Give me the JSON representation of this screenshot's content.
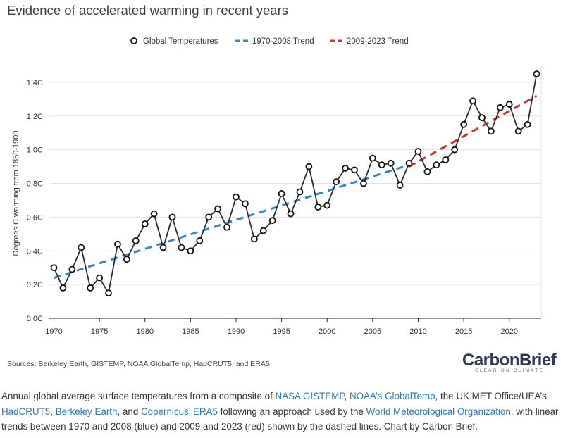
{
  "title": "Evidence of accelerated warming in recent years",
  "legend": [
    "Global Temperatures",
    "1970-2008 Trend",
    "2009-2023 Trend"
  ],
  "sources": "Sources: Berkeley Earth, GISTEMP, NOAA GlobalTemp, HadCRUT5, and ERA5",
  "logo": {
    "main": "CarbonBrief",
    "sub": "CLEAR ON CLIMATE"
  },
  "caption": {
    "t1": "Annual global average surface temperatures from a composite of ",
    "l1": "NASA GISTEMP",
    "t2": ", ",
    "l2": "NOAA’s GlobalTemp",
    "t3": ", the UK MET Office/UEA’s ",
    "l3": "HadCRUT5",
    "t4": ", ",
    "l4": "Berkeley Earth",
    "t5": ", and ",
    "l5": "Copernicus’ ERA5",
    "t6": " following an approach used by the ",
    "l6": "World Meteorological Organization",
    "t7": ", with linear trends between 1970 and 2008 (blue) and 2009 and 2023 (red) shown by the dashed lines. Chart by Carbon Brief."
  },
  "colors": {
    "series": "#2b2b2b",
    "trend1": "#3a86b6",
    "trend2": "#c0392b",
    "grid": "#e3e3e3"
  },
  "chart_data": {
    "type": "line",
    "title": "Evidence of accelerated warming in recent years",
    "xlabel": "",
    "ylabel": "Degrees C warming from 1850-1900",
    "xlim": [
      1969.5,
      2023.5
    ],
    "ylim": [
      0,
      1.5
    ],
    "xticks": [
      1970,
      1975,
      1980,
      1985,
      1990,
      1995,
      2000,
      2005,
      2010,
      2015,
      2020
    ],
    "yticks": [
      0,
      0.2,
      0.4,
      0.6,
      0.8,
      1.0,
      1.2,
      1.4
    ],
    "ytick_labels": [
      "0.0C",
      "0.2C",
      "0.4C",
      "0.6C",
      "0.8C",
      "1.0C",
      "1.2C",
      "1.4C"
    ],
    "grid": true,
    "legend_position": "top",
    "series": [
      {
        "name": "Global Temperatures",
        "x": [
          1970,
          1971,
          1972,
          1973,
          1974,
          1975,
          1976,
          1977,
          1978,
          1979,
          1980,
          1981,
          1982,
          1983,
          1984,
          1985,
          1986,
          1987,
          1988,
          1989,
          1990,
          1991,
          1992,
          1993,
          1994,
          1995,
          1996,
          1997,
          1998,
          1999,
          2000,
          2001,
          2002,
          2003,
          2004,
          2005,
          2006,
          2007,
          2008,
          2009,
          2010,
          2011,
          2012,
          2013,
          2014,
          2015,
          2016,
          2017,
          2018,
          2019,
          2020,
          2021,
          2022,
          2023
        ],
        "values": [
          0.3,
          0.18,
          0.29,
          0.42,
          0.18,
          0.24,
          0.15,
          0.44,
          0.35,
          0.46,
          0.56,
          0.62,
          0.42,
          0.6,
          0.42,
          0.4,
          0.46,
          0.6,
          0.65,
          0.54,
          0.72,
          0.68,
          0.47,
          0.52,
          0.58,
          0.74,
          0.62,
          0.75,
          0.9,
          0.66,
          0.67,
          0.81,
          0.89,
          0.88,
          0.8,
          0.95,
          0.91,
          0.92,
          0.79,
          0.92,
          0.99,
          0.87,
          0.91,
          0.94,
          1.0,
          1.15,
          1.29,
          1.19,
          1.11,
          1.25,
          1.27,
          1.11,
          1.15,
          1.45
        ]
      },
      {
        "name": "1970-2008 Trend",
        "x": [
          1970,
          2009
        ],
        "values": [
          0.24,
          0.91
        ]
      },
      {
        "name": "2009-2023 Trend",
        "x": [
          2009,
          2023
        ],
        "values": [
          0.9,
          1.32
        ]
      }
    ]
  }
}
